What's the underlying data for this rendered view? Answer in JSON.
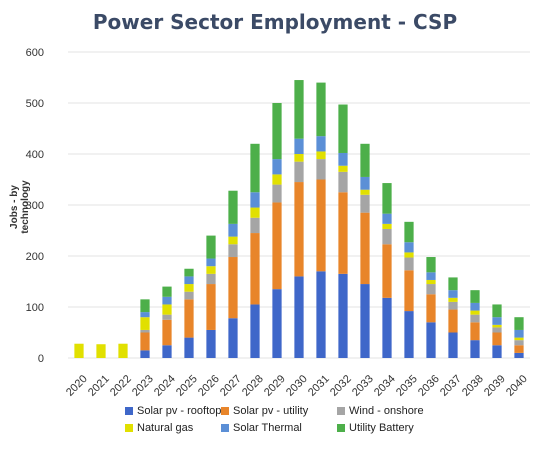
{
  "chart_data": {
    "type": "bar",
    "stacked": true,
    "title": "Power Sector Employment - CSP",
    "xlabel": "",
    "ylabel": "Jobs - by technology",
    "ylim": [
      0,
      600
    ],
    "yticks": [
      0,
      100,
      200,
      300,
      400,
      500,
      600
    ],
    "grid": true,
    "legend_position": "bottom",
    "categories": [
      "2020",
      "2021",
      "2022",
      "2023",
      "2024",
      "2025",
      "2026",
      "2027",
      "2028",
      "2029",
      "2030",
      "2031",
      "2032",
      "2033",
      "2034",
      "2035",
      "2036",
      "2037",
      "2038",
      "2039",
      "2040"
    ],
    "series": [
      {
        "name": "Solar pv - rooftop",
        "color": "#3f67c9",
        "values": [
          0,
          0,
          0,
          15,
          25,
          40,
          55,
          78,
          105,
          135,
          160,
          170,
          165,
          145,
          118,
          92,
          70,
          50,
          35,
          25,
          10
        ]
      },
      {
        "name": "Solar pv - utility",
        "color": "#e8852a",
        "values": [
          0,
          0,
          0,
          35,
          50,
          75,
          90,
          120,
          140,
          170,
          185,
          180,
          160,
          140,
          105,
          80,
          55,
          45,
          35,
          25,
          15
        ]
      },
      {
        "name": "Wind - onshore",
        "color": "#a5a5a5",
        "values": [
          0,
          0,
          0,
          5,
          10,
          15,
          20,
          25,
          30,
          35,
          40,
          40,
          40,
          35,
          30,
          25,
          20,
          15,
          15,
          10,
          10
        ]
      },
      {
        "name": "Natural gas",
        "color": "#e1e000",
        "values": [
          28,
          27,
          28,
          25,
          20,
          15,
          15,
          15,
          20,
          20,
          15,
          15,
          12,
          10,
          10,
          10,
          8,
          8,
          8,
          5,
          5
        ]
      },
      {
        "name": "Solar Thermal",
        "color": "#5b8fd6",
        "values": [
          0,
          0,
          0,
          10,
          15,
          15,
          15,
          25,
          30,
          30,
          30,
          30,
          25,
          25,
          20,
          20,
          15,
          15,
          15,
          15,
          15
        ]
      },
      {
        "name": "Utility Battery",
        "color": "#4daf4a",
        "values": [
          0,
          0,
          0,
          25,
          20,
          15,
          45,
          65,
          95,
          110,
          115,
          105,
          95,
          65,
          60,
          40,
          30,
          25,
          25,
          25,
          25
        ]
      }
    ]
  }
}
